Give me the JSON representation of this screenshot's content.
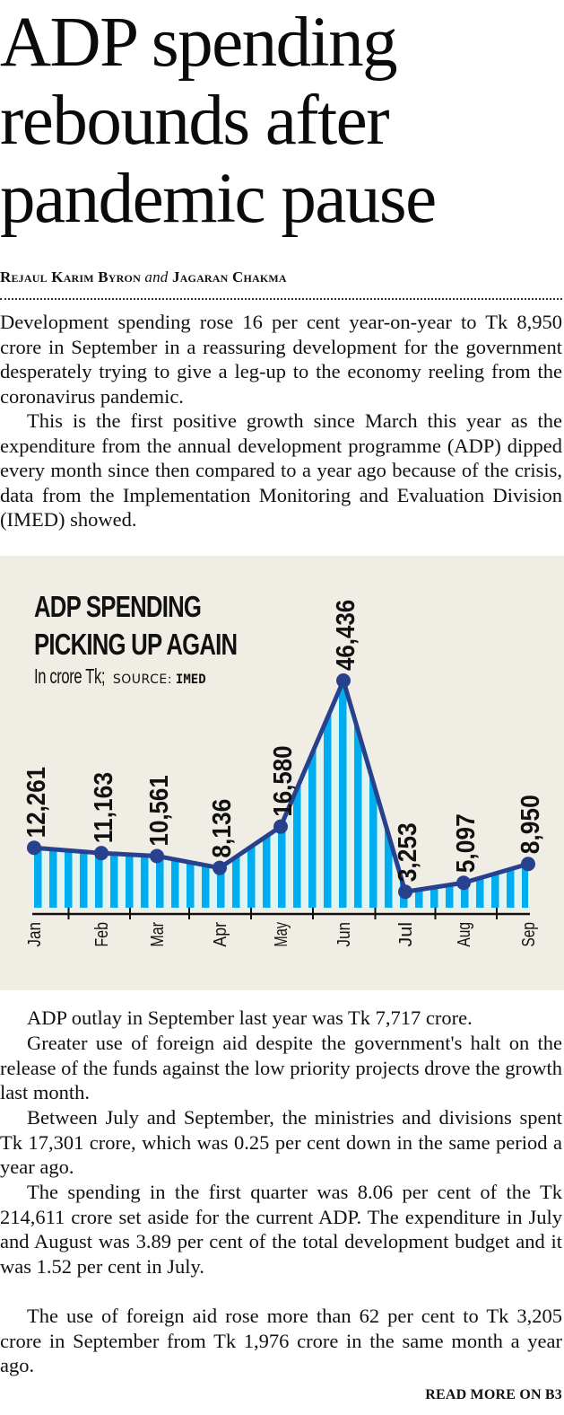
{
  "headline": {
    "lines": [
      "ADP spending",
      "rebounds after",
      "pandemic pause"
    ]
  },
  "byline": {
    "author1": "Rejaul Karim Byron",
    "conjunction": "and",
    "author2": "Jagaran Chakma"
  },
  "intro_paragraphs": [
    "Development spending rose 16 per cent year-on-year to Tk 8,950 crore in September in a reassuring development for the government desperately trying to give a leg-up to the economy reeling from the coronavirus pandemic.",
    "This is the first positive growth since March this year as the expenditure from the annual development programme (ADP) dipped every month since then compared to a year ago because of the crisis, data from the Implementation Monitoring and Evaluation Division (IMED) showed."
  ],
  "chart_data": {
    "type": "area",
    "title_lines": [
      "ADP SPENDING",
      "PICKING UP AGAIN"
    ],
    "unit_label": "In crore Tk;",
    "source_label": "SOURCE:",
    "source_name": "IMED",
    "categories": [
      "Jan",
      "Feb",
      "Mar",
      "Apr",
      "May",
      "Jun",
      "Jul",
      "Aug",
      "Sep"
    ],
    "values": [
      12261,
      11163,
      10561,
      8136,
      16580,
      46436,
      3253,
      5097,
      8950
    ],
    "value_labels": [
      "12,261",
      "11,163",
      "10,561",
      "8,136",
      "16,580",
      "46,436",
      "3,253",
      "5,097",
      "8,950"
    ],
    "xlabel": "",
    "ylabel": "",
    "ylim": [
      0,
      46436
    ],
    "grid": false,
    "legend": "none",
    "colors": {
      "line": "#27418f",
      "stripe_blue": "#00aeef",
      "stripe_light": "#e2f3f0",
      "axis": "#111111",
      "panel_bg": "#f0ede5"
    }
  },
  "body_paragraphs": [
    "ADP outlay in September last year was Tk 7,717 crore.",
    "Greater use of foreign aid despite the government's halt on the release of the funds against the low priority projects drove the growth last month.",
    "Between July and September, the ministries and divisions spent Tk 17,301 crore, which was 0.25 per cent down in the same period a year ago.",
    "The spending in the first quarter was 8.06 per cent of the Tk 214,611 crore set aside for the current ADP. The expenditure in July and August was 3.89 per cent of the total development budget and it was 1.52 per cent in July.",
    "The use of foreign aid rose more than 62 per cent to Tk 3,205 crore in September from Tk 1,976 crore in the same month a year ago."
  ],
  "read_more": "READ MORE ON B3"
}
